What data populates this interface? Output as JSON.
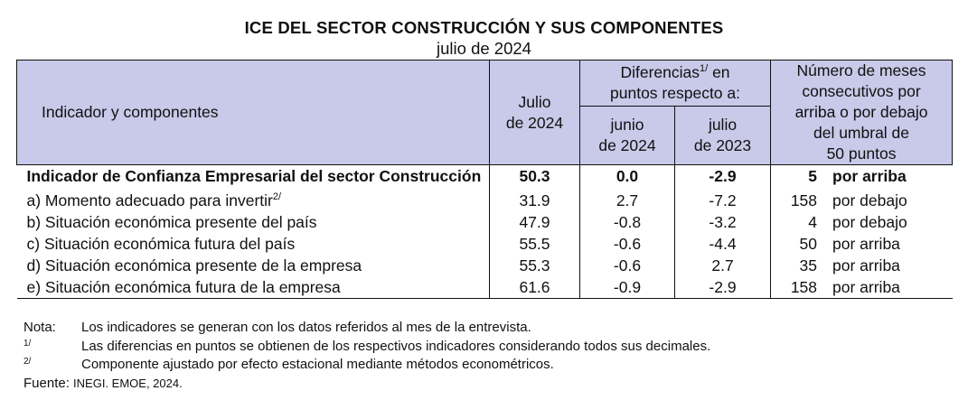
{
  "title": "ICE DEL SECTOR CONSTRUCCIÓN Y SUS COMPONENTES",
  "subtitle": "julio de 2024",
  "header": {
    "indicator": "Indicador y componentes",
    "current_line1": "Julio",
    "current_line2": "de 2024",
    "diff_prefix": "Diferencias",
    "diff_sup": "1/",
    "diff_suffix": " en",
    "diff_line2": "puntos respecto a:",
    "prev_month_line1": "junio",
    "prev_month_line2": "de 2024",
    "prev_year_line1": "julio",
    "prev_year_line2": "de 2023",
    "months_line1": "Número de meses",
    "months_line2": "consecutivos por",
    "months_line3": "arriba o por debajo",
    "months_line4": "del umbral de",
    "months_line5": "50 puntos"
  },
  "main_row": {
    "name": "Indicador de Confianza Empresarial del sector Construcción",
    "value": "50.3",
    "diff_month": "0.0",
    "diff_year": "-2.9",
    "months": "5",
    "position": "por arriba"
  },
  "rows": [
    {
      "label": "a)  Momento adecuado para invertir",
      "sup": "2/",
      "value": "31.9",
      "diff_month": "2.7",
      "diff_year": "-7.2",
      "months": "158",
      "position": "por debajo"
    },
    {
      "label": "b)  Situación económica presente del país",
      "sup": "",
      "value": "47.9",
      "diff_month": "-0.8",
      "diff_year": "-3.2",
      "months": "4",
      "position": "por debajo"
    },
    {
      "label": "c)  Situación económica futura del país",
      "sup": "",
      "value": "55.5",
      "diff_month": "-0.6",
      "diff_year": "-4.4",
      "months": "50",
      "position": "por arriba"
    },
    {
      "label": "d)  Situación económica presente de la empresa",
      "sup": "",
      "value": "55.3",
      "diff_month": "-0.6",
      "diff_year": "2.7",
      "months": "35",
      "position": "por arriba"
    },
    {
      "label": "e)  Situación económica futura de la empresa",
      "sup": "",
      "value": "61.6",
      "diff_month": "-0.9",
      "diff_year": "-2.9",
      "months": "158",
      "position": "por arriba"
    }
  ],
  "notes": [
    {
      "label": "Nota:",
      "text": "Los indicadores se generan con los datos referidos al mes de la entrevista."
    },
    {
      "label": "1/",
      "text": "Las diferencias en puntos se obtienen de los respectivos indicadores considerando todos sus decimales."
    },
    {
      "label": "2/",
      "text": "Componente ajustado por efecto estacional mediante métodos econométricos."
    }
  ],
  "source": {
    "label": "Fuente: ",
    "text": "INEGI. EMOE, 2024."
  },
  "colors": {
    "header_bg": "#c9c9e9"
  }
}
